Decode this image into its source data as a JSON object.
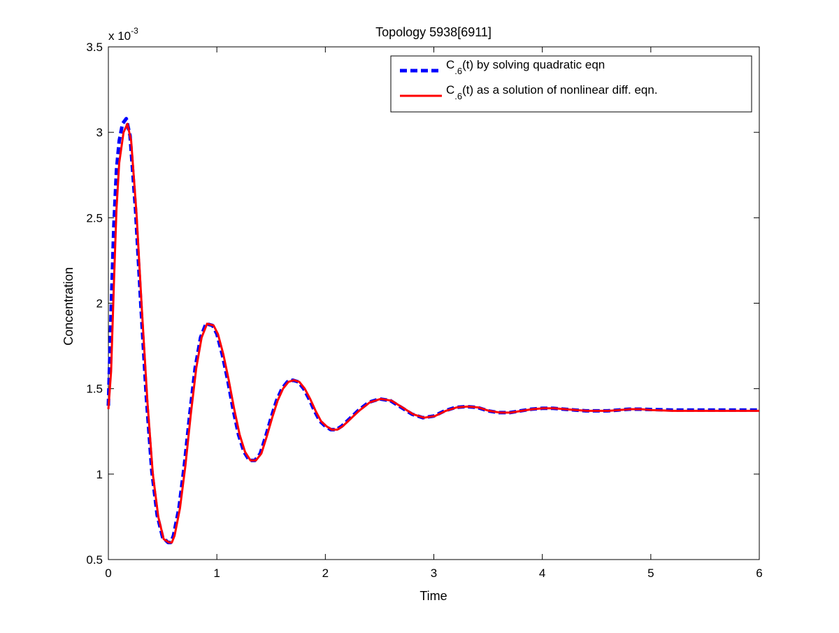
{
  "chart_data": {
    "type": "line",
    "title": "Topology 5938[6911]",
    "xlabel": "Time",
    "ylabel": "Concentration",
    "y_exponent_label": "x 10",
    "y_exponent_power": "-3",
    "xlim": [
      0,
      6
    ],
    "ylim": [
      0.5,
      3.5
    ],
    "xticks": [
      0,
      1,
      2,
      3,
      4,
      5,
      6
    ],
    "yticks": [
      0.5,
      1,
      1.5,
      2,
      2.5,
      3,
      3.5
    ],
    "xtick_labels": [
      "0",
      "1",
      "2",
      "3",
      "4",
      "5",
      "6"
    ],
    "ytick_labels": [
      "0.5",
      "1",
      "1.5",
      "2",
      "2.5",
      "3",
      "3.5"
    ],
    "grid": false,
    "legend_position": "top-right",
    "series": [
      {
        "legend_main": "C",
        "legend_sub": ".6",
        "legend_rest": "(t) by solving quadratic eqn",
        "color": "#0000ff",
        "style": "dashed",
        "x": [
          0,
          0.025,
          0.05,
          0.075,
          0.1,
          0.13,
          0.165,
          0.2,
          0.25,
          0.3,
          0.35,
          0.4,
          0.45,
          0.5,
          0.55,
          0.575,
          0.6,
          0.65,
          0.7,
          0.75,
          0.8,
          0.85,
          0.9,
          0.96,
          1.0,
          1.05,
          1.1,
          1.15,
          1.2,
          1.25,
          1.3,
          1.35,
          1.4,
          1.45,
          1.5,
          1.55,
          1.6,
          1.65,
          1.7,
          1.75,
          1.8,
          1.85,
          1.9,
          1.95,
          2.0,
          2.05,
          2.1,
          2.15,
          2.2,
          2.3,
          2.4,
          2.5,
          2.6,
          2.7,
          2.8,
          2.9,
          3.0,
          3.1,
          3.2,
          3.3,
          3.4,
          3.5,
          3.6,
          3.7,
          3.8,
          3.9,
          4.0,
          4.1,
          4.2,
          4.3,
          4.4,
          4.5,
          4.6,
          4.7,
          4.8,
          4.9,
          5.0,
          5.2,
          5.4,
          5.6,
          5.8,
          6.0
        ],
        "y": [
          1.4,
          1.95,
          2.45,
          2.78,
          2.95,
          3.05,
          3.08,
          2.98,
          2.55,
          1.98,
          1.45,
          1.02,
          0.76,
          0.63,
          0.6,
          0.6,
          0.64,
          0.8,
          1.05,
          1.35,
          1.62,
          1.8,
          1.88,
          1.87,
          1.82,
          1.7,
          1.55,
          1.38,
          1.23,
          1.13,
          1.08,
          1.08,
          1.12,
          1.22,
          1.33,
          1.43,
          1.5,
          1.54,
          1.55,
          1.54,
          1.5,
          1.44,
          1.37,
          1.31,
          1.28,
          1.26,
          1.26,
          1.28,
          1.31,
          1.37,
          1.42,
          1.44,
          1.43,
          1.39,
          1.35,
          1.33,
          1.34,
          1.37,
          1.39,
          1.395,
          1.39,
          1.37,
          1.36,
          1.36,
          1.37,
          1.38,
          1.385,
          1.385,
          1.38,
          1.375,
          1.37,
          1.37,
          1.37,
          1.375,
          1.38,
          1.38,
          1.378,
          1.375,
          1.375,
          1.375,
          1.375,
          1.375
        ]
      },
      {
        "legend_main": "C",
        "legend_sub": ".6",
        "legend_rest": "(t) as a solution of nonlinear diff. eqn.",
        "color": "#ff0000",
        "style": "solid",
        "x": [
          0,
          0.025,
          0.05,
          0.075,
          0.1,
          0.14,
          0.175,
          0.21,
          0.26,
          0.31,
          0.36,
          0.41,
          0.46,
          0.51,
          0.56,
          0.585,
          0.61,
          0.66,
          0.71,
          0.76,
          0.81,
          0.86,
          0.91,
          0.97,
          1.01,
          1.06,
          1.11,
          1.16,
          1.21,
          1.26,
          1.31,
          1.36,
          1.41,
          1.46,
          1.51,
          1.56,
          1.61,
          1.66,
          1.71,
          1.76,
          1.81,
          1.86,
          1.91,
          1.96,
          2.01,
          2.06,
          2.11,
          2.16,
          2.21,
          2.31,
          2.41,
          2.51,
          2.61,
          2.71,
          2.81,
          2.91,
          3.01,
          3.11,
          3.21,
          3.31,
          3.41,
          3.51,
          3.61,
          3.71,
          3.81,
          3.91,
          4.01,
          4.11,
          4.21,
          4.31,
          4.41,
          4.51,
          4.61,
          4.71,
          4.81,
          4.91,
          5.01,
          5.21,
          5.41,
          5.61,
          5.81,
          6.0
        ],
        "y": [
          1.38,
          1.6,
          2.1,
          2.55,
          2.82,
          3.0,
          3.05,
          2.95,
          2.52,
          1.95,
          1.42,
          1.0,
          0.75,
          0.62,
          0.6,
          0.6,
          0.64,
          0.8,
          1.05,
          1.35,
          1.62,
          1.8,
          1.88,
          1.87,
          1.82,
          1.7,
          1.55,
          1.38,
          1.23,
          1.13,
          1.08,
          1.08,
          1.12,
          1.22,
          1.33,
          1.43,
          1.5,
          1.54,
          1.55,
          1.54,
          1.5,
          1.44,
          1.37,
          1.31,
          1.28,
          1.26,
          1.26,
          1.28,
          1.31,
          1.37,
          1.42,
          1.44,
          1.43,
          1.39,
          1.35,
          1.33,
          1.34,
          1.37,
          1.39,
          1.395,
          1.39,
          1.37,
          1.36,
          1.36,
          1.37,
          1.38,
          1.385,
          1.385,
          1.38,
          1.375,
          1.37,
          1.37,
          1.37,
          1.375,
          1.38,
          1.38,
          1.375,
          1.37,
          1.37,
          1.37,
          1.37,
          1.37
        ]
      }
    ]
  }
}
